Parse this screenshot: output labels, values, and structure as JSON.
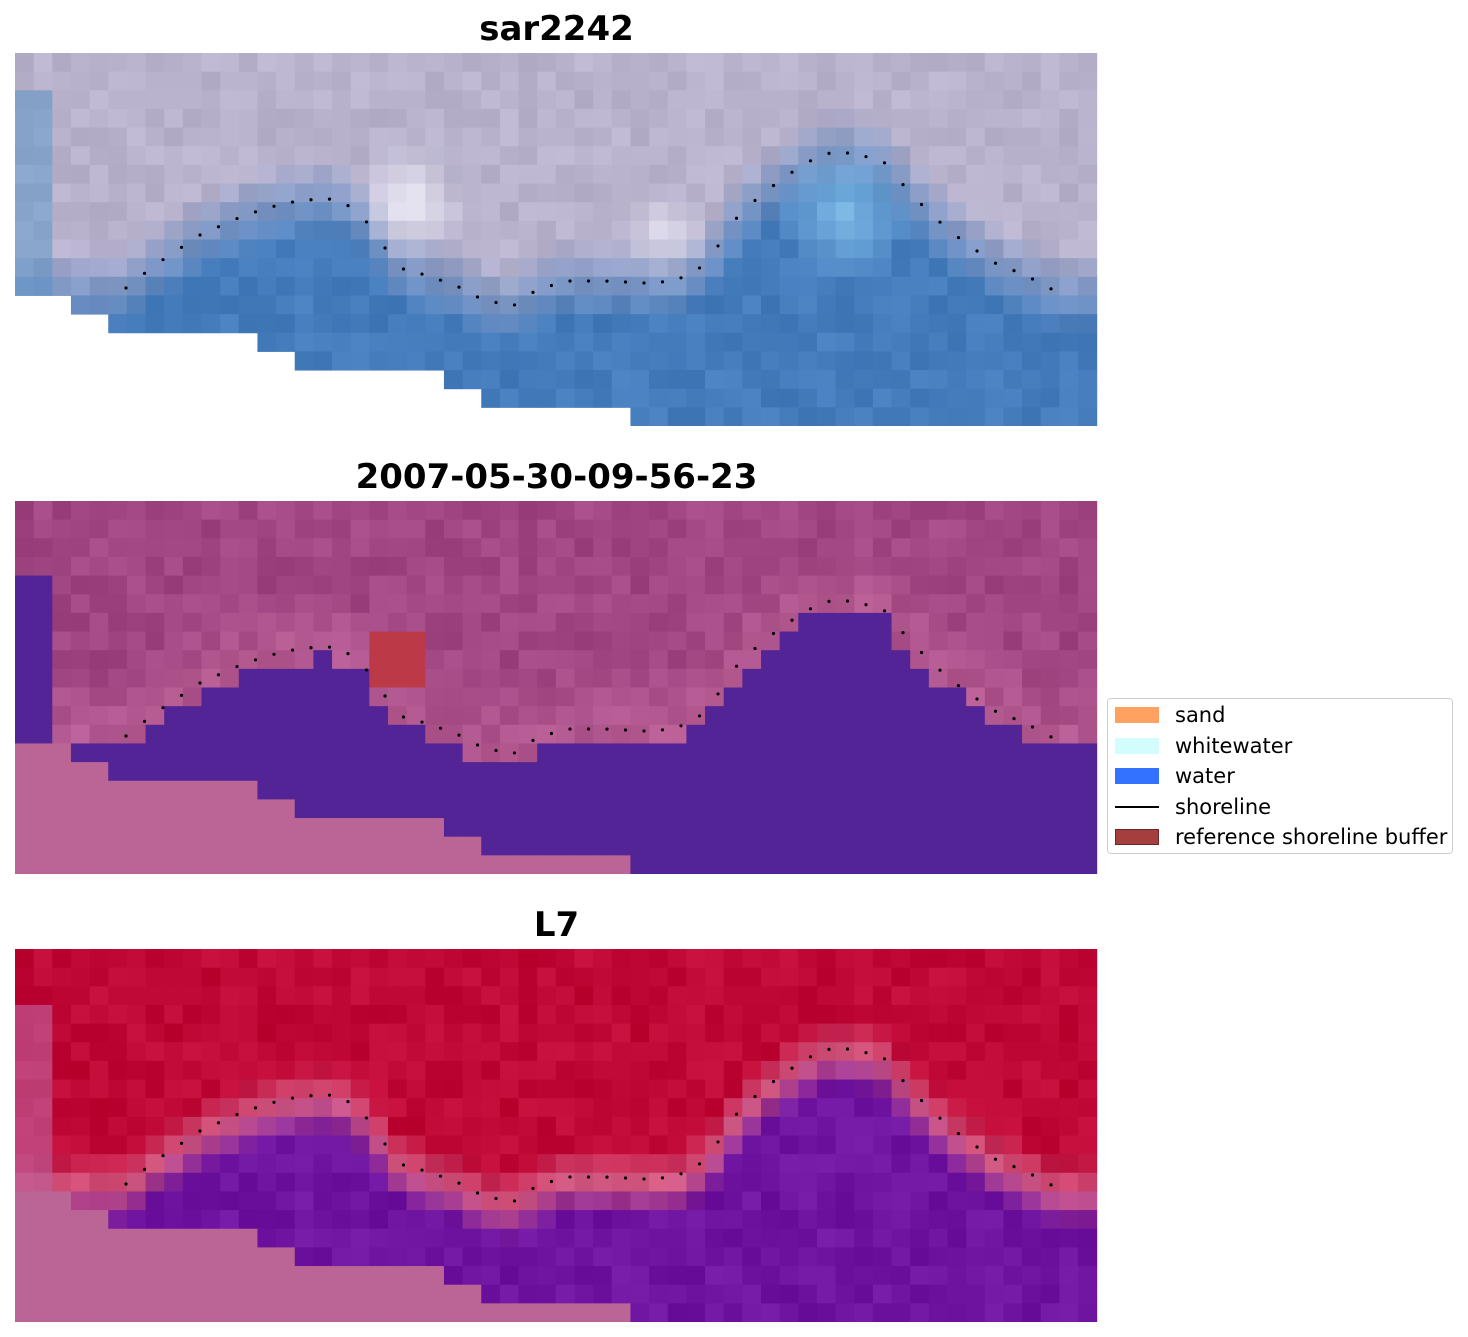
{
  "panels": [
    {
      "title": "sar2242",
      "kind": "rgb"
    },
    {
      "title": "2007-05-30-09-56-23",
      "kind": "classification"
    },
    {
      "title": "L7",
      "kind": "index"
    }
  ],
  "colors": {
    "sand": "#ff8c3a",
    "whitewater": "#c9fdfd",
    "water": "#0050ff",
    "shoreline": "#000000",
    "reference_buffer": "#9c2a2a",
    "nodata": "#ba6595"
  },
  "legend": {
    "items": [
      {
        "label": "sand",
        "type": "patch",
        "color": "#ff8c3a"
      },
      {
        "label": "whitewater",
        "type": "patch",
        "color": "#c9fdfd"
      },
      {
        "label": "water",
        "type": "patch",
        "color": "#0050ff"
      },
      {
        "label": "shoreline",
        "type": "line",
        "color": "#000000"
      },
      {
        "label": "reference shoreline buffer",
        "type": "patch",
        "color": "#9c2a2a"
      }
    ]
  }
}
